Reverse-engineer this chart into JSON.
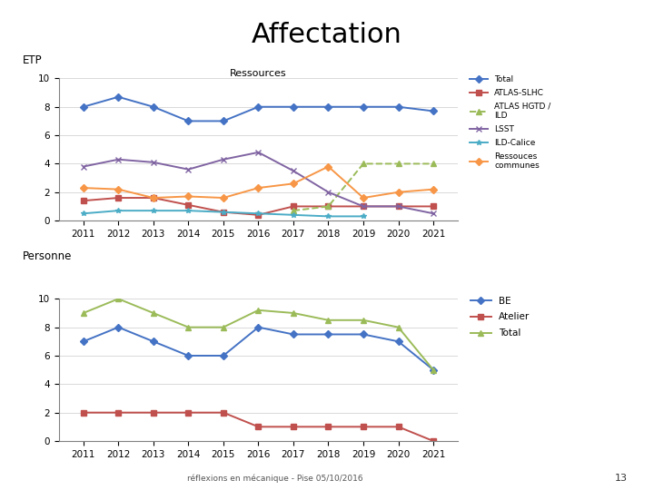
{
  "title": "Affectation",
  "subtitle1": "Ressources",
  "ylabel1": "ETP",
  "ylabel2": "Personne",
  "years": [
    2011,
    2012,
    2013,
    2014,
    2015,
    2016,
    2017,
    2018,
    2019,
    2020,
    2021
  ],
  "top": {
    "Total": [
      8.0,
      8.7,
      8.0,
      7.0,
      7.0,
      8.0,
      8.0,
      8.0,
      8.0,
      8.0,
      7.7
    ],
    "ATLAS-SLHC": [
      1.4,
      1.6,
      1.6,
      1.1,
      0.6,
      0.4,
      1.0,
      1.0,
      1.0,
      1.0,
      1.0
    ],
    "ATLAS HGTD /\nILD": [
      null,
      null,
      null,
      null,
      null,
      null,
      0.7,
      1.0,
      4.0,
      4.0,
      4.0
    ],
    "LSST": [
      3.8,
      4.3,
      4.1,
      3.6,
      4.3,
      4.8,
      3.5,
      2.0,
      1.0,
      1.0,
      0.5
    ],
    "ILD-Calice": [
      0.5,
      0.7,
      0.7,
      0.7,
      0.6,
      0.5,
      0.4,
      0.3,
      0.3,
      null,
      null
    ],
    "Ressouces\ncommunes": [
      2.3,
      2.2,
      1.6,
      1.7,
      1.6,
      2.3,
      2.6,
      3.8,
      1.6,
      2.0,
      2.2
    ]
  },
  "top_colors": {
    "Total": "#4472C4",
    "ATLAS-SLHC": "#C0504D",
    "ATLAS HGTD /\nILD": "#9BBB59",
    "LSST": "#8064A2",
    "ILD-Calice": "#4BACC6",
    "Ressouces\ncommunes": "#F79646"
  },
  "top_dashed": [
    "ATLAS HGTD /\nILD"
  ],
  "bottom": {
    "BE": [
      7,
      8,
      7,
      6,
      6,
      8,
      7.5,
      7.5,
      7.5,
      7,
      5
    ],
    "Atelier": [
      2,
      2,
      2,
      2,
      2,
      1,
      1,
      1,
      1,
      1,
      0
    ],
    "Total": [
      9,
      10,
      9,
      8,
      8,
      9.2,
      9,
      8.5,
      8.5,
      8,
      5
    ]
  },
  "bottom_colors": {
    "BE": "#4472C4",
    "Atelier": "#C0504D",
    "Total": "#9BBB59"
  },
  "footer": "réflexions en mécanique - Pise 05/10/2016",
  "page_num": "13",
  "background": "#FFFFFF"
}
